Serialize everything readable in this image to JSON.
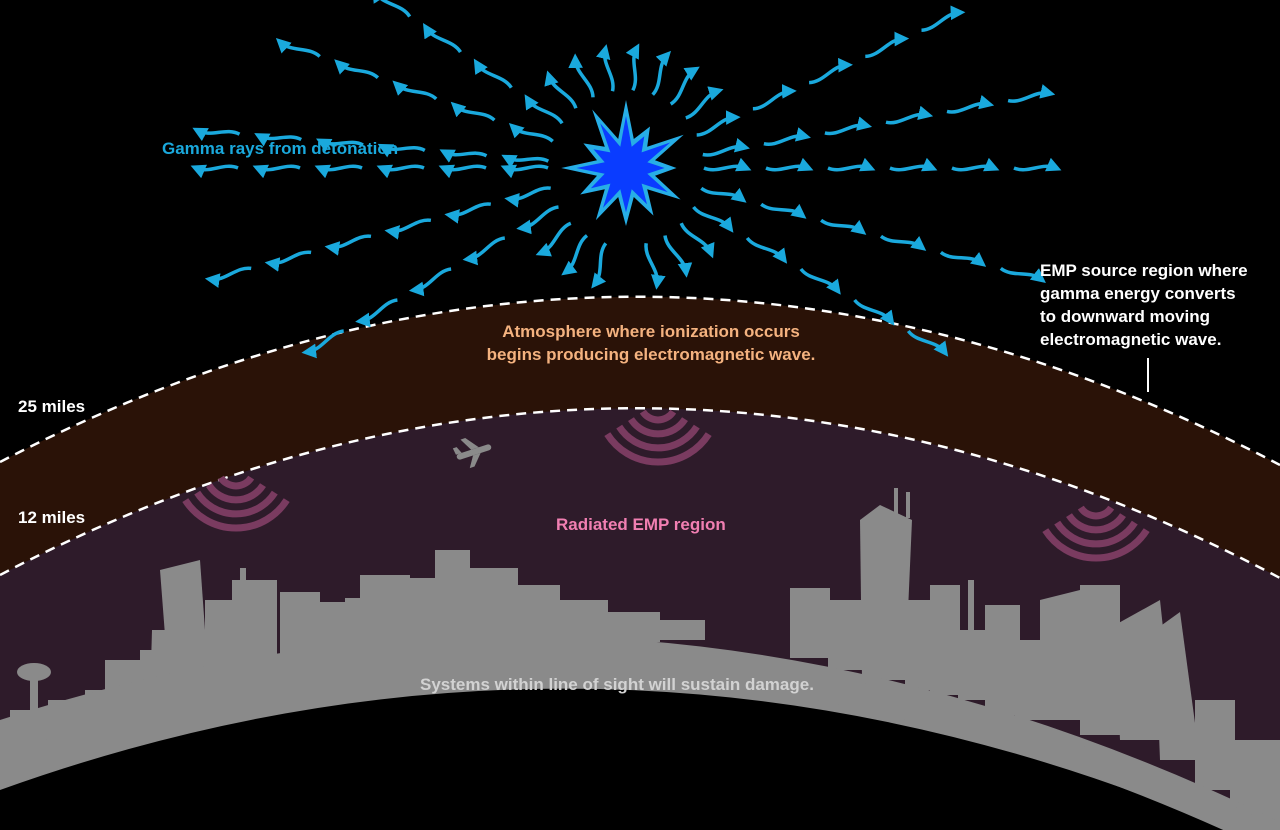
{
  "labels": {
    "gamma": "Gamma rays from detonation",
    "atmosphere_line1": "Atmosphere where ionization occurs",
    "atmosphere_line2": "begins producing electromagnetic wave.",
    "emp_source_line1": "EMP source region where",
    "emp_source_line2": "gamma energy converts",
    "emp_source_line3": "to downward moving",
    "emp_source_line4": "electromagnetic wave.",
    "alt_25": "25 miles",
    "alt_12": "12 miles",
    "radiated": "Radiated EMP region",
    "systems": "Systems within line of sight will sustain damage."
  },
  "colors": {
    "background": "#000000",
    "upper_band": "#2a1207",
    "lower_band": "#2e1b2a",
    "ground": "#8a8a8a",
    "gamma": "#1aa9dd",
    "burst_outer": "#27aee6",
    "burst_inner": "#0a3cff",
    "emp_arcs": "#7a3b60"
  }
}
